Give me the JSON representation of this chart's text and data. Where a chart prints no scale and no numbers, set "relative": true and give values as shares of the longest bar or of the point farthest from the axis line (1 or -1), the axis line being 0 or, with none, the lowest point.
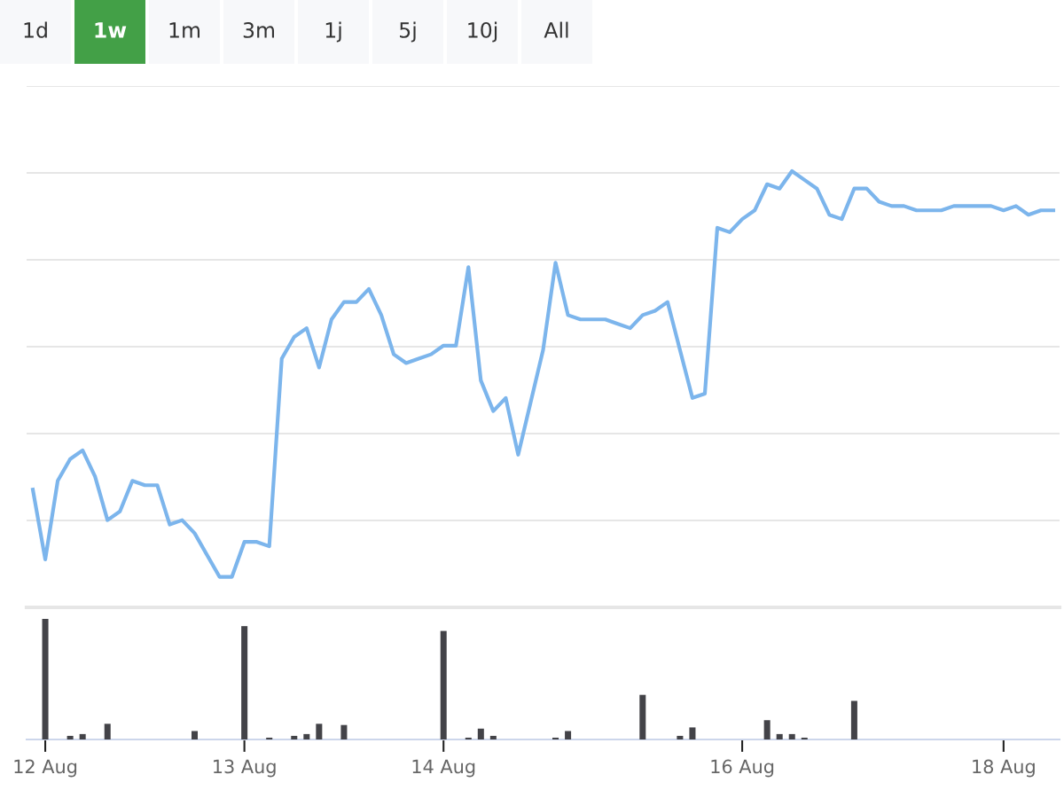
{
  "chart_data": [
    {
      "type": "other",
      "categories": [
        "1d",
        "1w",
        "1m",
        "3m",
        "1j",
        "5j",
        "10j",
        "All"
      ],
      "colors": [
        "#f7f8fa",
        "#43a047",
        "#f7f8fa",
        "#f7f8fa",
        "#f7f8fa",
        "#f7f8fa",
        "#f7f8fa",
        "#f7f8fa"
      ]
    },
    {
      "type": "line",
      "relative": true,
      "grid": "y",
      "tick_labels": false,
      "categories": [
        null,
        null,
        null,
        null,
        null,
        null,
        null,
        null,
        null,
        null,
        null,
        null,
        null,
        null,
        null,
        null,
        null,
        null,
        null,
        null,
        null,
        null,
        null,
        null,
        null,
        null,
        null,
        null,
        null,
        null,
        null,
        null,
        null,
        null,
        null,
        null,
        null,
        null,
        null,
        null,
        null,
        null,
        null,
        null,
        null,
        null,
        null,
        null,
        null,
        null,
        null,
        null,
        null,
        null,
        null,
        null,
        null,
        null,
        null,
        null,
        null,
        null,
        null,
        null,
        null,
        null,
        null,
        null,
        null,
        null,
        null,
        null,
        null,
        null,
        null,
        null,
        null,
        null,
        null,
        null,
        null,
        null,
        null
      ],
      "series": [
        {
          "color": "#7cb5ec",
          "values": [
            0.27,
            0.11,
            0.29,
            0.34,
            0.36,
            0.3,
            0.2,
            0.22,
            0.29,
            0.28,
            0.28,
            0.19,
            0.2,
            0.17,
            0.12,
            0.07,
            0.07,
            0.15,
            0.15,
            0.14,
            0.57,
            0.62,
            0.64,
            0.55,
            0.66,
            0.7,
            0.7,
            0.73,
            0.67,
            0.58,
            0.56,
            0.57,
            0.58,
            0.6,
            0.6,
            0.78,
            0.52,
            0.45,
            0.48,
            0.35,
            0.47,
            0.59,
            0.79,
            0.67,
            0.66,
            0.66,
            0.66,
            0.65,
            0.64,
            0.67,
            0.68,
            0.7,
            0.59,
            0.48,
            0.49,
            0.87,
            0.86,
            0.89,
            0.91,
            0.97,
            0.96,
            1.0,
            0.98,
            0.96,
            0.9,
            0.89,
            0.96,
            0.96,
            0.93,
            0.92,
            0.92,
            0.91,
            0.91,
            0.91,
            0.92,
            0.92,
            0.92,
            0.92,
            0.91,
            0.92,
            0.9,
            0.91,
            0.91
          ]
        }
      ]
    },
    {
      "type": "bar",
      "relative": true,
      "grid": false,
      "tick_labels": "x",
      "categories": [
        null,
        "12 Aug",
        null,
        null,
        null,
        null,
        null,
        null,
        null,
        null,
        null,
        null,
        null,
        null,
        null,
        null,
        null,
        "13 Aug",
        null,
        null,
        null,
        null,
        null,
        null,
        null,
        null,
        null,
        null,
        null,
        null,
        null,
        null,
        null,
        "14 Aug",
        null,
        null,
        null,
        null,
        null,
        null,
        null,
        null,
        null,
        null,
        null,
        null,
        null,
        null,
        null,
        null,
        null,
        null,
        null,
        null,
        null,
        null,
        null,
        "16 Aug",
        null,
        null,
        null,
        null,
        null,
        null,
        null,
        null,
        null,
        null,
        null,
        null,
        null,
        null,
        null,
        null,
        null,
        null,
        null,
        null,
        "18 Aug",
        null,
        null,
        null,
        null
      ],
      "series": [
        {
          "color": "#434348",
          "values": [
            null,
            1.0,
            null,
            0.03,
            0.045,
            null,
            0.13,
            null,
            null,
            null,
            null,
            null,
            null,
            0.07,
            null,
            null,
            null,
            0.94,
            null,
            0.015,
            null,
            0.03,
            0.045,
            0.13,
            null,
            0.12,
            null,
            null,
            null,
            null,
            null,
            null,
            null,
            0.9,
            null,
            0.015,
            0.09,
            0.03,
            null,
            null,
            null,
            null,
            0.015,
            0.07,
            null,
            null,
            null,
            null,
            null,
            0.37,
            null,
            null,
            0.03,
            0.1,
            null,
            null,
            null,
            null,
            null,
            0.16,
            0.045,
            0.045,
            0.015,
            null,
            null,
            null,
            0.32,
            null,
            null,
            null,
            null,
            null,
            null,
            null,
            null,
            null,
            null,
            null,
            null,
            null,
            null,
            null,
            null
          ]
        }
      ]
    }
  ]
}
